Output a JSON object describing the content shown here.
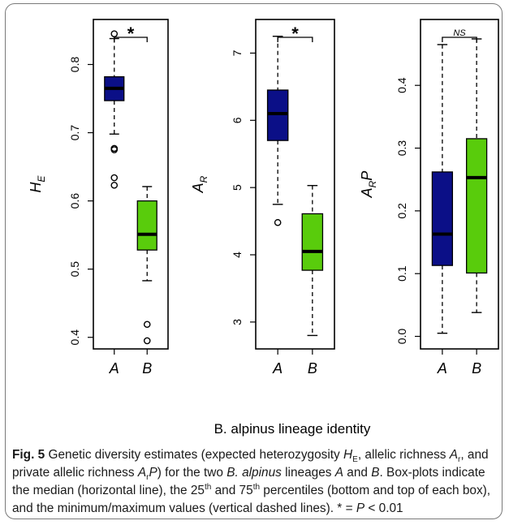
{
  "x_axis_label": "B. alpinus lineage identity",
  "sig_marks": [
    "*",
    "*",
    "NS"
  ],
  "colors": {
    "A": "#0b0f87",
    "B": "#59cc0c"
  },
  "caption": {
    "label": "Fig. 5",
    "t1": " Genetic diversity estimates (expected heterozygosity ",
    "he_main": "H",
    "he_sub": "E",
    "t2": ", allelic richness ",
    "ar_main": "A",
    "ar_sub": "r",
    "t3": ", and private allelic richness ",
    "arp_main": "A",
    "arp_sub": "r",
    "arp_end": "P",
    "t4": ") for the two ",
    "species": "B. alpinus",
    "t5": " lineages ",
    "lin_a": "A",
    "t6": " and ",
    "lin_b": "B",
    "t7": ". Box-plots indicate the median (horizontal line), the 25",
    "sup1": "th",
    "t8": " and 75",
    "sup2": "th",
    "t9": " percentiles (bottom and top of each box), and the minimum/maximum values (vertical dashed lines). * = ",
    "p_italic": "P",
    "t10": " < 0.01"
  },
  "chart_data": [
    {
      "type": "box",
      "ylabel": "H_E",
      "ylim": [
        0.383,
        0.866
      ],
      "yticks": [
        "0.4",
        "0.5",
        "0.6",
        "0.7",
        "0.8"
      ],
      "categories": [
        "A",
        "B"
      ],
      "significance": "*",
      "boxes": [
        {
          "category": "A",
          "min": 0.698,
          "q1": 0.747,
          "median": 0.765,
          "q3": 0.782,
          "max": 0.838,
          "outliers": [
            0.845,
            0.677,
            0.675,
            0.634,
            0.623
          ]
        },
        {
          "category": "B",
          "min": 0.483,
          "q1": 0.528,
          "median": 0.551,
          "q3": 0.6,
          "max": 0.621,
          "outliers": [
            0.419,
            0.395
          ]
        }
      ]
    },
    {
      "type": "box",
      "ylabel": "A_R",
      "ylim": [
        2.6,
        7.5
      ],
      "yticks": [
        "3",
        "4",
        "5",
        "6",
        "7"
      ],
      "categories": [
        "A",
        "B"
      ],
      "significance": "*",
      "boxes": [
        {
          "category": "A",
          "min": 4.75,
          "q1": 5.7,
          "median": 6.1,
          "q3": 6.45,
          "max": 7.25,
          "outliers": [
            4.48
          ]
        },
        {
          "category": "B",
          "min": 2.8,
          "q1": 3.77,
          "median": 4.05,
          "q3": 4.61,
          "max": 5.03,
          "outliers": []
        }
      ]
    },
    {
      "type": "box",
      "ylabel": "A_RP",
      "ylim": [
        -0.02,
        0.505
      ],
      "yticks": [
        "0.0",
        "0.1",
        "0.2",
        "0.3",
        "0.4"
      ],
      "categories": [
        "A",
        "B"
      ],
      "significance": "NS",
      "boxes": [
        {
          "category": "A",
          "min": 0.005,
          "q1": 0.113,
          "median": 0.163,
          "q3": 0.262,
          "max": 0.465,
          "outliers": []
        },
        {
          "category": "B",
          "min": 0.038,
          "q1": 0.101,
          "median": 0.253,
          "q3": 0.315,
          "max": 0.474,
          "outliers": []
        }
      ]
    }
  ]
}
